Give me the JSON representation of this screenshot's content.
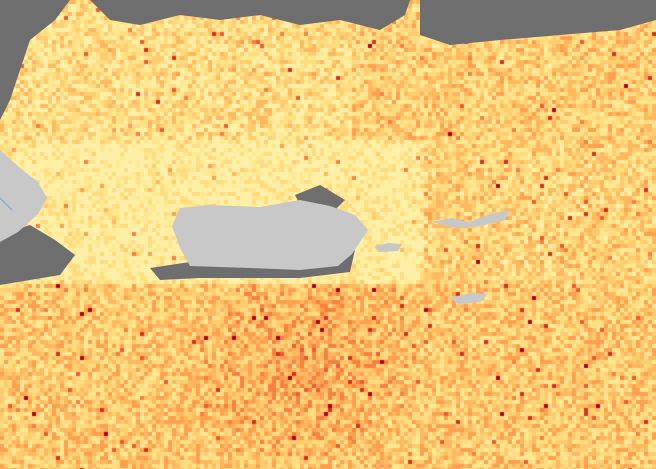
{
  "map": {
    "colors": {
      "no_data": "#6e6e6e",
      "land": "#c8c8c8",
      "low": "#ffe890",
      "mid": "#ffc060",
      "high": "#f07030",
      "max": "#b00020"
    },
    "landmasses": [
      "puerto-rico",
      "hispaniola-east",
      "vieques",
      "virgin-islands",
      "st-croix"
    ]
  }
}
